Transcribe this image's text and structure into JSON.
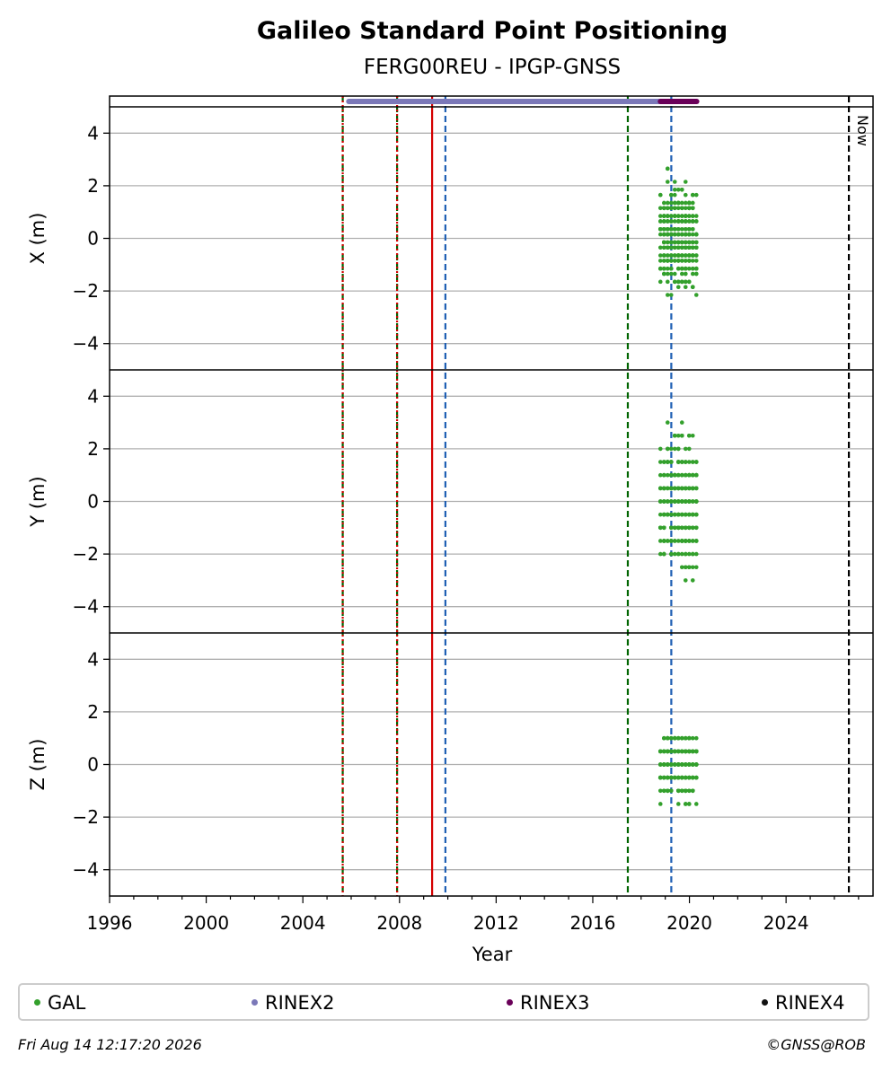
{
  "chart_data": {
    "type": "scatter",
    "title": "Galileo Standard Point Positioning",
    "subtitle": "FERG00REU - IPGP-GNSS",
    "xlabel": "Year",
    "xlim": [
      1996,
      2027.6
    ],
    "xticks": [
      1996,
      2000,
      2004,
      2008,
      2012,
      2016,
      2020,
      2024
    ],
    "ylim": [
      -5,
      5
    ],
    "yticks": [
      -4,
      -2,
      0,
      2,
      4
    ],
    "grid": true,
    "panels": [
      {
        "ylabel": "X (m)",
        "center": 0.0,
        "spread": 0.85,
        "min": -2.2,
        "max": 2.6
      },
      {
        "ylabel": "Y (m)",
        "center": 0.0,
        "spread": 1.1,
        "min": -3.0,
        "max": 3.0
      },
      {
        "ylabel": "Z (m)",
        "center": -0.1,
        "spread": 0.55,
        "min": -2.0,
        "max": 2.0
      }
    ],
    "gal_x_range": [
      2018.8,
      2020.3
    ],
    "series_colors": {
      "GAL": "#33a02c",
      "RINEX2": "#7b78b8",
      "RINEX3": "#6a0059",
      "RINEX4": "#111111"
    },
    "rinex_bars": [
      {
        "name": "RINEX2",
        "start": 2005.9,
        "end": 2019.5
      },
      {
        "name": "RINEX3",
        "start": 2018.8,
        "end": 2020.3
      }
    ],
    "vlines": [
      {
        "x": 2005.65,
        "color": "#006400",
        "style": "dashed"
      },
      {
        "x": 2005.65,
        "color": "#d40000",
        "style": "dotted"
      },
      {
        "x": 2007.9,
        "color": "#006400",
        "style": "dashed"
      },
      {
        "x": 2007.9,
        "color": "#d40000",
        "style": "dotted"
      },
      {
        "x": 2009.35,
        "color": "#d40000",
        "style": "solid"
      },
      {
        "x": 2009.9,
        "color": "#1f5fb4",
        "style": "dashed"
      },
      {
        "x": 2017.45,
        "color": "#006400",
        "style": "dashed"
      },
      {
        "x": 2019.25,
        "color": "#1f5fb4",
        "style": "dashed"
      },
      {
        "x": 2026.6,
        "color": "#000000",
        "style": "dashed"
      }
    ],
    "now_label": "Now"
  },
  "legend": {
    "items": [
      {
        "label": "GAL",
        "color": "#33a02c"
      },
      {
        "label": "RINEX2",
        "color": "#7b78b8"
      },
      {
        "label": "RINEX3",
        "color": "#6a0059"
      },
      {
        "label": "RINEX4",
        "color": "#111111"
      }
    ]
  },
  "footer": {
    "timestamp": "Fri Aug 14 12:17:20 2026",
    "copyright": "©GNSS@ROB"
  }
}
